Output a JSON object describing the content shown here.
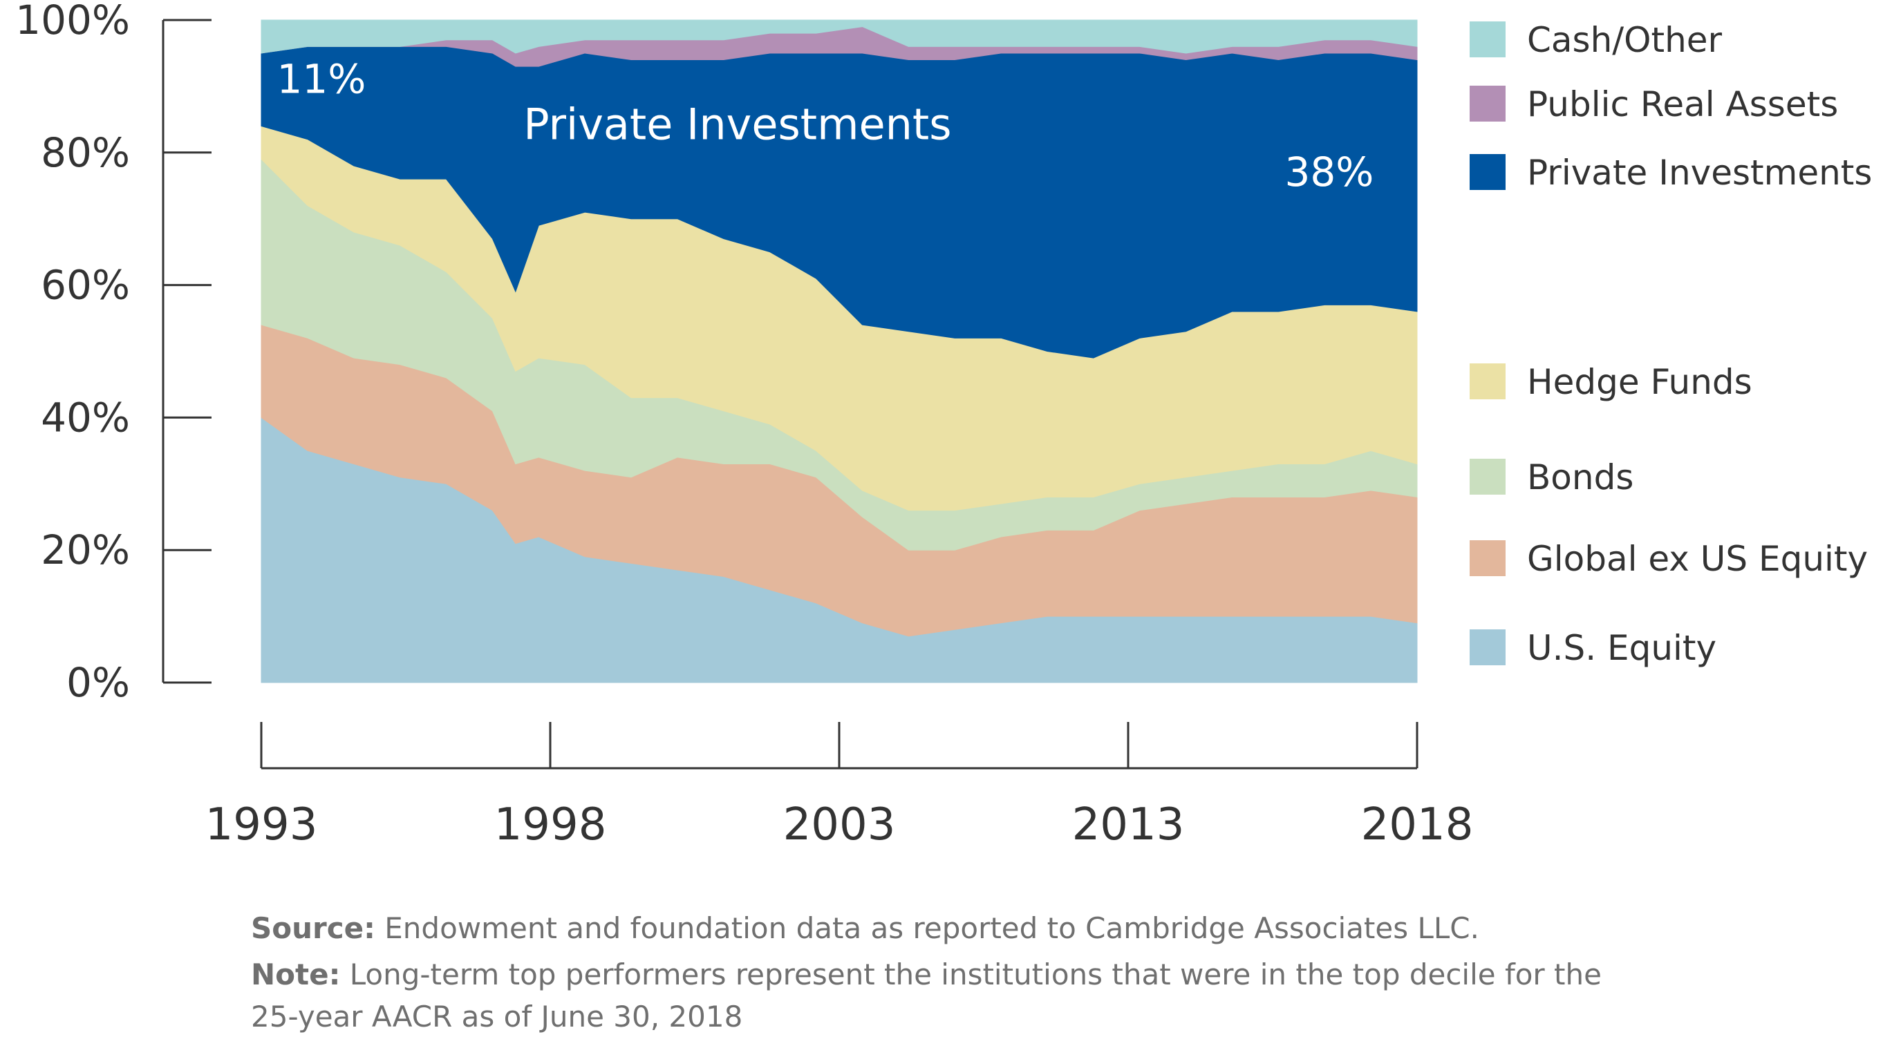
{
  "chart_data": {
    "type": "area",
    "stacked": true,
    "normalized_to_percent": true,
    "x_ticks": [
      "1993",
      "1998",
      "2003",
      "2013",
      "2018"
    ],
    "x": [
      1993,
      1994,
      1995,
      1996,
      1997,
      1998,
      1998.5,
      1999,
      2000,
      2001,
      2002,
      2003,
      2004,
      2005,
      2006,
      2007,
      2008,
      2009,
      2010,
      2011,
      2012,
      2013,
      2014,
      2015,
      2016,
      2017,
      2018
    ],
    "y_ticks": [
      "0%",
      "20%",
      "40%",
      "60%",
      "80%",
      "100%"
    ],
    "ylim": [
      0,
      100
    ],
    "series": [
      {
        "name": "U.S. Equity",
        "color": "#a3c9d9",
        "values": [
          40,
          35,
          33,
          31,
          30,
          26,
          21,
          22,
          19,
          18,
          17,
          16,
          14,
          12,
          9,
          7,
          8,
          9,
          10,
          10,
          10,
          10,
          10,
          10,
          10,
          10,
          9
        ]
      },
      {
        "name": "Global ex US Equity",
        "color": "#e3b79c",
        "values": [
          14,
          17,
          16,
          17,
          16,
          15,
          12,
          12,
          13,
          13,
          17,
          17,
          19,
          19,
          16,
          13,
          12,
          13,
          13,
          13,
          16,
          17,
          18,
          18,
          18,
          19,
          19
        ]
      },
      {
        "name": "Bonds",
        "color": "#cadfbf",
        "values": [
          25,
          20,
          19,
          18,
          16,
          14,
          14,
          15,
          16,
          12,
          9,
          8,
          6,
          4,
          4,
          6,
          6,
          5,
          5,
          5,
          4,
          4,
          4,
          5,
          5,
          6,
          5
        ]
      },
      {
        "name": "Hedge Funds",
        "color": "#ebe1a5",
        "values": [
          5,
          10,
          10,
          10,
          14,
          12,
          12,
          20,
          23,
          27,
          27,
          26,
          26,
          26,
          25,
          27,
          26,
          25,
          22,
          21,
          22,
          22,
          24,
          23,
          24,
          22,
          23
        ]
      },
      {
        "name": "Private Investments",
        "color": "#0055a0",
        "values": [
          11,
          14,
          18,
          20,
          20,
          28,
          34,
          24,
          24,
          24,
          24,
          27,
          30,
          34,
          41,
          41,
          42,
          43,
          45,
          46,
          43,
          41,
          39,
          38,
          38,
          38,
          38
        ]
      },
      {
        "name": "Public Real Assets",
        "color": "#b38fb5",
        "values": [
          0,
          0,
          0,
          0,
          1,
          2,
          2,
          3,
          2,
          3,
          3,
          3,
          3,
          3,
          4,
          2,
          2,
          1,
          1,
          1,
          1,
          1,
          1,
          2,
          2,
          2,
          2
        ]
      },
      {
        "name": "Cash/Other",
        "color": "#a5d8d8",
        "values": [
          5,
          4,
          4,
          4,
          3,
          3,
          5,
          4,
          3,
          3,
          3,
          3,
          2,
          2,
          1,
          4,
          4,
          4,
          4,
          4,
          4,
          5,
          4,
          4,
          3,
          3,
          4
        ]
      }
    ],
    "legend": [
      "Cash/Other",
      "Public Real Assets",
      "Private Investments",
      "Hedge Funds",
      "Bonds",
      "Global ex US Equity",
      "U.S. Equity"
    ],
    "legend_position": "right",
    "annotations": [
      {
        "text": "11%",
        "x": 1994.3,
        "y": 89
      },
      {
        "text": "Private Investments",
        "x": 2003.3,
        "y": 82
      },
      {
        "text": "38%",
        "x": 2016.1,
        "y": 75
      }
    ]
  },
  "footer": {
    "source_label": "Source:",
    "source_text": " Endowment and foundation data as reported to Cambridge Associates LLC.",
    "note_label": "Note:",
    "note_text": " Long-term top performers represent the institutions that were in the top decile for the 25-year AACR as of June 30, 2018"
  }
}
